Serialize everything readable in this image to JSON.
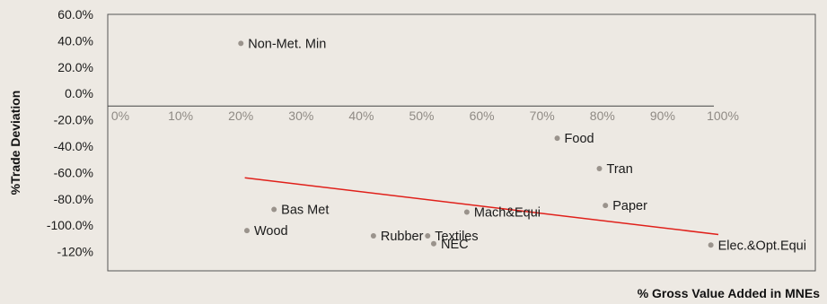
{
  "chart_data": {
    "type": "scatter",
    "xlabel": "% Gross Value Added in MNEs",
    "ylabel": "%Trade Deviation",
    "xlim": [
      0,
      100
    ],
    "ylim": [
      -130,
      60
    ],
    "x_ticks": [
      "0%",
      "10%",
      "20%",
      "30%",
      "40%",
      "50%",
      "60%",
      "70%",
      "80%",
      "90%",
      "100%"
    ],
    "y_ticks": [
      "60.0%",
      "40.0%",
      "20.0%",
      "0.0%",
      "-20.0%",
      "-40.0%",
      "-60.0%",
      "-80.0%",
      "-100.0%",
      "-120%"
    ],
    "points": [
      {
        "label": "Non-Met. Min",
        "x": 21.5,
        "y": 38
      },
      {
        "label": "Bas Met",
        "x": 27,
        "y": -88
      },
      {
        "label": "Wood",
        "x": 22.5,
        "y": -104
      },
      {
        "label": "Rubber",
        "x": 43.5,
        "y": -108
      },
      {
        "label": "Textiles",
        "x": 52.5,
        "y": -108
      },
      {
        "label": "NEC",
        "x": 53.5,
        "y": -114
      },
      {
        "label": "Mach&Equi",
        "x": 59,
        "y": -90
      },
      {
        "label": "Food",
        "x": 74,
        "y": -34
      },
      {
        "label": "Tran",
        "x": 81,
        "y": -57
      },
      {
        "label": "Paper",
        "x": 82,
        "y": -85
      },
      {
        "label": "Elec.&Opt.Equi",
        "x": 99.5,
        "y": -115
      }
    ],
    "trendline": {
      "x": [
        22,
        100
      ],
      "y": [
        -64,
        -107
      ]
    },
    "colors": {
      "point": "#9a938c",
      "trendline": "#e0201a",
      "plot_border": "#555555",
      "zero_line": "#444444"
    }
  }
}
